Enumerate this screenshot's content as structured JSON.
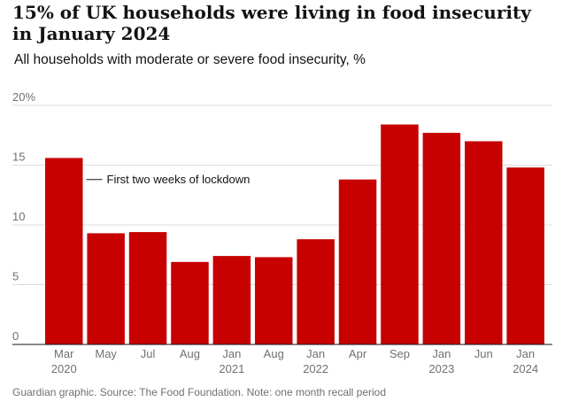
{
  "header": {
    "title": "15% of UK households were living in food insecurity in January 2024",
    "subtitle": "All households with moderate or severe food insecurity, %"
  },
  "footer": {
    "source": "Guardian graphic. Source: The Food Foundation. Note: one month recall period"
  },
  "colors": {
    "bar": "#c70000",
    "grid": "#dcdcdc",
    "axis": "#121212",
    "tick_text": "#707070"
  },
  "chart_data": {
    "type": "bar",
    "title": "15% of UK households were living in food insecurity in January 2024",
    "subtitle": "All households with moderate or severe food insecurity, %",
    "xlabel": "",
    "ylabel": "",
    "ylim": [
      0,
      20
    ],
    "yticks": [
      0,
      5,
      10,
      15,
      20
    ],
    "ytick_labels": [
      "0",
      "5",
      "10",
      "15",
      "20%"
    ],
    "grid": true,
    "categories": [
      "Mar 2020",
      "May",
      "Jul",
      "Aug",
      "Jan 2021",
      "Aug",
      "Jan 2022",
      "Apr",
      "Sep",
      "Jan 2023",
      "Jun",
      "Jan 2024"
    ],
    "category_lines": [
      [
        "Mar",
        "2020"
      ],
      [
        "May"
      ],
      [
        "Jul"
      ],
      [
        "Aug"
      ],
      [
        "Jan",
        "2021"
      ],
      [
        "Aug"
      ],
      [
        "Jan",
        "2022"
      ],
      [
        "Apr"
      ],
      [
        "Sep"
      ],
      [
        "Jan",
        "2023"
      ],
      [
        "Jun"
      ],
      [
        "Jan",
        "2024"
      ]
    ],
    "values": [
      15.6,
      9.3,
      9.4,
      6.9,
      7.4,
      7.3,
      8.8,
      13.8,
      18.4,
      17.7,
      17.0,
      14.8
    ],
    "annotations": [
      {
        "category_index": 0,
        "value": 13.8,
        "text": "First two weeks of lockdown"
      }
    ]
  }
}
